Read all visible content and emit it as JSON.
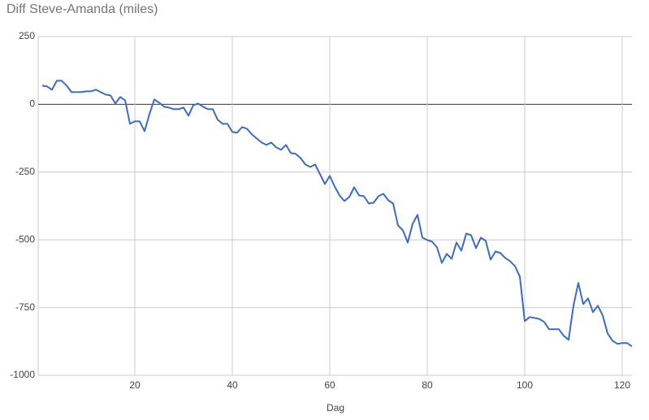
{
  "chart_data": {
    "type": "line",
    "title": "Diff Steve-Amanda (miles)",
    "x_label": "Dag",
    "x": [
      1,
      2,
      3,
      4,
      5,
      6,
      7,
      8,
      9,
      10,
      11,
      12,
      13,
      14,
      15,
      16,
      17,
      18,
      19,
      20,
      21,
      22,
      23,
      24,
      25,
      26,
      27,
      28,
      29,
      30,
      31,
      32,
      33,
      34,
      35,
      36,
      37,
      38,
      39,
      40,
      41,
      42,
      43,
      44,
      45,
      46,
      47,
      48,
      49,
      50,
      51,
      52,
      53,
      54,
      55,
      56,
      57,
      58,
      59,
      60,
      61,
      62,
      63,
      64,
      65,
      66,
      67,
      68,
      69,
      70,
      71,
      72,
      73,
      74,
      75,
      76,
      77,
      78,
      79,
      80,
      81,
      82,
      83,
      84,
      85,
      86,
      87,
      88,
      89,
      90,
      91,
      92,
      93,
      94,
      95,
      96,
      97,
      98,
      99,
      100,
      101,
      102,
      103,
      104,
      105,
      106,
      107,
      108,
      109,
      110,
      111,
      112,
      113,
      114,
      115,
      116,
      117,
      118,
      119,
      120,
      121,
      122
    ],
    "series": [
      {
        "name": "Diff",
        "color": "#3d6cb9",
        "values": [
          69,
          66,
          54,
          87,
          87,
          69,
          45,
          45,
          45,
          48,
          48,
          54,
          45,
          36,
          33,
          3,
          27,
          15,
          -72,
          -63,
          -63,
          -99,
          -36,
          18,
          6,
          -9,
          -12,
          -18,
          -18,
          -12,
          -42,
          -3,
          3,
          -9,
          -18,
          -18,
          -57,
          -72,
          -72,
          -102,
          -105,
          -84,
          -90,
          -111,
          -126,
          -141,
          -150,
          -141,
          -159,
          -168,
          -150,
          -180,
          -183,
          -198,
          -222,
          -231,
          -222,
          -258,
          -294,
          -264,
          -303,
          -336,
          -357,
          -342,
          -306,
          -336,
          -339,
          -366,
          -363,
          -339,
          -330,
          -354,
          -366,
          -447,
          -465,
          -510,
          -441,
          -408,
          -492,
          -501,
          -507,
          -528,
          -585,
          -552,
          -570,
          -510,
          -540,
          -477,
          -483,
          -531,
          -492,
          -504,
          -573,
          -543,
          -549,
          -567,
          -579,
          -597,
          -636,
          -800,
          -785,
          -788,
          -792,
          -803,
          -830,
          -830,
          -830,
          -854,
          -869,
          -743,
          -659,
          -737,
          -716,
          -767,
          -743,
          -779,
          -845,
          -872,
          -884,
          -881,
          -881,
          -893
        ]
      }
    ],
    "xlim": [
      1,
      122
    ],
    "xticks": [
      20,
      40,
      60,
      80,
      100,
      120
    ],
    "ylim": [
      -1000,
      250
    ],
    "yticks": [
      250,
      0,
      -250,
      -500,
      -750,
      -1000
    ],
    "grid": true
  }
}
